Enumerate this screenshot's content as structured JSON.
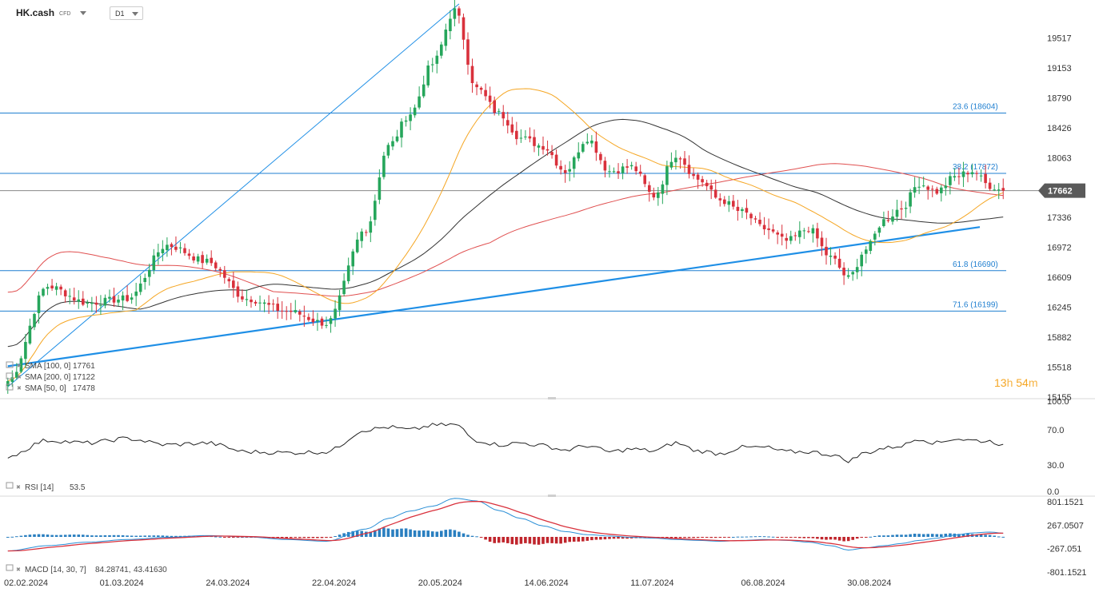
{
  "header": {
    "symbol": "HK.cash",
    "instrument_type": "CFD",
    "timeframe": "D1"
  },
  "countdown": {
    "hours": "13",
    "hours_unit": "h",
    "minutes": "54",
    "minutes_unit": "m"
  },
  "colors": {
    "up": "#26a65b",
    "down": "#d9313c",
    "sma50": "#f5a623",
    "sma100": "#333333",
    "sma200": "#e05050",
    "fib": "#1f7fd0",
    "trend": "#1f8fe6",
    "rsi": "#222222",
    "macd_line": "#2a8fd6",
    "signal_line": "#d9313c"
  },
  "chart_data": {
    "type": "candlestick",
    "price_axis": {
      "ticks": [
        "19517",
        "19153",
        "18790",
        "18426",
        "18063",
        "17336",
        "16972",
        "16609",
        "16245",
        "15882",
        "15518",
        "15155"
      ],
      "ylim": [
        15155,
        19880
      ]
    },
    "x_labels": [
      "02.02.2024",
      "01.03.2024",
      "24.03.2024",
      "22.04.2024",
      "20.05.2024",
      "14.06.2024",
      "11.07.2024",
      "06.08.2024",
      "30.08.2024"
    ],
    "last_price": "17662",
    "fib_levels": [
      {
        "label": "23.6 (18604)",
        "value": 18604
      },
      {
        "label": "38.2 (17872)",
        "value": 17872
      },
      {
        "label": "61.8 (16690)",
        "value": 16690
      },
      {
        "label": "71.6 (16199)",
        "value": 16199
      }
    ],
    "indicators": [
      {
        "label": "SMA [100, 0]",
        "value": "17761"
      },
      {
        "label": "SMA [200, 0]",
        "value": "17122"
      },
      {
        "label": "SMA [50, 0]",
        "value": "17478"
      }
    ],
    "rsi": {
      "label": "RSI [14]",
      "value": "53.5",
      "ticks": [
        "100.0",
        "70.0",
        "30.0",
        "0.0"
      ]
    },
    "macd": {
      "label": "MACD [14, 30, 7]",
      "value1": "84.28741",
      "value2": "43.41630",
      "ticks": [
        "801.1521",
        "267.0507",
        "-267.051",
        "-801.1521"
      ]
    },
    "anchors": [
      [
        0,
        15350
      ],
      [
        9,
        16500
      ],
      [
        18,
        16300
      ],
      [
        27,
        16350
      ],
      [
        36,
        17000
      ],
      [
        45,
        16800
      ],
      [
        54,
        16350
      ],
      [
        63,
        16200
      ],
      [
        72,
        16050
      ],
      [
        81,
        17200
      ],
      [
        86,
        18200
      ],
      [
        91,
        18600
      ],
      [
        96,
        19200
      ],
      [
        101,
        19850
      ],
      [
        106,
        18900
      ],
      [
        111,
        18600
      ],
      [
        116,
        18300
      ],
      [
        121,
        18200
      ],
      [
        126,
        17900
      ],
      [
        131,
        18300
      ],
      [
        136,
        17900
      ],
      [
        141,
        17950
      ],
      [
        146,
        17600
      ],
      [
        151,
        18100
      ],
      [
        156,
        17800
      ],
      [
        161,
        17550
      ],
      [
        166,
        17400
      ],
      [
        171,
        17200
      ],
      [
        176,
        17050
      ],
      [
        181,
        17200
      ],
      [
        186,
        16850
      ],
      [
        190,
        16600
      ],
      [
        194,
        16950
      ],
      [
        198,
        17300
      ],
      [
        202,
        17450
      ],
      [
        206,
        17750
      ],
      [
        210,
        17650
      ],
      [
        214,
        17830
      ],
      [
        218,
        17900
      ],
      [
        222,
        17720
      ],
      [
        225,
        17662
      ]
    ],
    "rsi_anchors": [
      [
        0,
        40
      ],
      [
        9,
        58
      ],
      [
        18,
        55
      ],
      [
        27,
        60
      ],
      [
        36,
        53
      ],
      [
        45,
        55
      ],
      [
        54,
        45
      ],
      [
        63,
        44
      ],
      [
        72,
        45
      ],
      [
        81,
        70
      ],
      [
        86,
        73
      ],
      [
        91,
        70
      ],
      [
        96,
        75
      ],
      [
        101,
        76
      ],
      [
        106,
        58
      ],
      [
        111,
        53
      ],
      [
        116,
        55
      ],
      [
        121,
        52
      ],
      [
        126,
        47
      ],
      [
        131,
        52
      ],
      [
        136,
        45
      ],
      [
        141,
        48
      ],
      [
        146,
        46
      ],
      [
        151,
        55
      ],
      [
        156,
        46
      ],
      [
        161,
        43
      ],
      [
        166,
        50
      ],
      [
        171,
        50
      ],
      [
        176,
        45
      ],
      [
        181,
        45
      ],
      [
        186,
        42
      ],
      [
        190,
        35
      ],
      [
        194,
        44
      ],
      [
        198,
        49
      ],
      [
        202,
        52
      ],
      [
        206,
        60
      ],
      [
        210,
        55
      ],
      [
        214,
        60
      ],
      [
        218,
        58
      ],
      [
        222,
        57
      ],
      [
        225,
        53.5
      ]
    ],
    "macd_anchors": [
      [
        0,
        -320
      ],
      [
        9,
        -200
      ],
      [
        18,
        -120
      ],
      [
        27,
        -60
      ],
      [
        36,
        -10
      ],
      [
        45,
        30
      ],
      [
        54,
        0
      ],
      [
        63,
        -60
      ],
      [
        72,
        -100
      ],
      [
        81,
        180
      ],
      [
        86,
        420
      ],
      [
        91,
        590
      ],
      [
        96,
        700
      ],
      [
        101,
        880
      ],
      [
        106,
        820
      ],
      [
        111,
        600
      ],
      [
        116,
        420
      ],
      [
        121,
        250
      ],
      [
        126,
        120
      ],
      [
        131,
        50
      ],
      [
        136,
        20
      ],
      [
        141,
        -10
      ],
      [
        146,
        -30
      ],
      [
        151,
        -60
      ],
      [
        156,
        -80
      ],
      [
        161,
        -100
      ],
      [
        166,
        -80
      ],
      [
        171,
        -60
      ],
      [
        176,
        -80
      ],
      [
        181,
        -120
      ],
      [
        186,
        -200
      ],
      [
        190,
        -300
      ],
      [
        194,
        -250
      ],
      [
        198,
        -200
      ],
      [
        202,
        -150
      ],
      [
        206,
        -80
      ],
      [
        210,
        -30
      ],
      [
        214,
        40
      ],
      [
        218,
        90
      ],
      [
        222,
        110
      ],
      [
        225,
        84.28741
      ]
    ]
  }
}
